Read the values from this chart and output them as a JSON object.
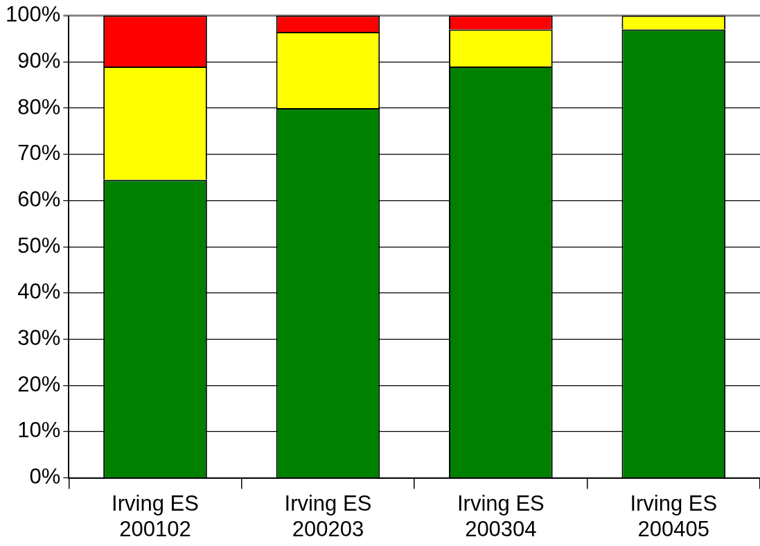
{
  "chart_data": {
    "type": "bar",
    "stacked": true,
    "categories": [
      "Irving ES\n200102",
      "Irving ES\n200203",
      "Irving ES\n200304",
      "Irving ES\n200405"
    ],
    "series": [
      {
        "color": "#008000",
        "values": [
          64.5,
          80,
          89,
          97
        ]
      },
      {
        "color": "#ffff00",
        "values": [
          24.5,
          16.5,
          8,
          3
        ]
      },
      {
        "color": "#ff0000",
        "values": [
          11,
          3.5,
          3,
          0
        ]
      }
    ],
    "ylim": [
      0,
      100
    ],
    "yticks": [
      {
        "value": 0,
        "label": "0%"
      },
      {
        "value": 10,
        "label": "10%"
      },
      {
        "value": 20,
        "label": "20%"
      },
      {
        "value": 30,
        "label": "30%"
      },
      {
        "value": 40,
        "label": "40%"
      },
      {
        "value": 50,
        "label": "50%"
      },
      {
        "value": 60,
        "label": "60%"
      },
      {
        "value": 70,
        "label": "70%"
      },
      {
        "value": 80,
        "label": "80%"
      },
      {
        "value": 90,
        "label": "90%"
      },
      {
        "value": 100,
        "label": "100%"
      }
    ],
    "grid": "y",
    "legend": false
  }
}
